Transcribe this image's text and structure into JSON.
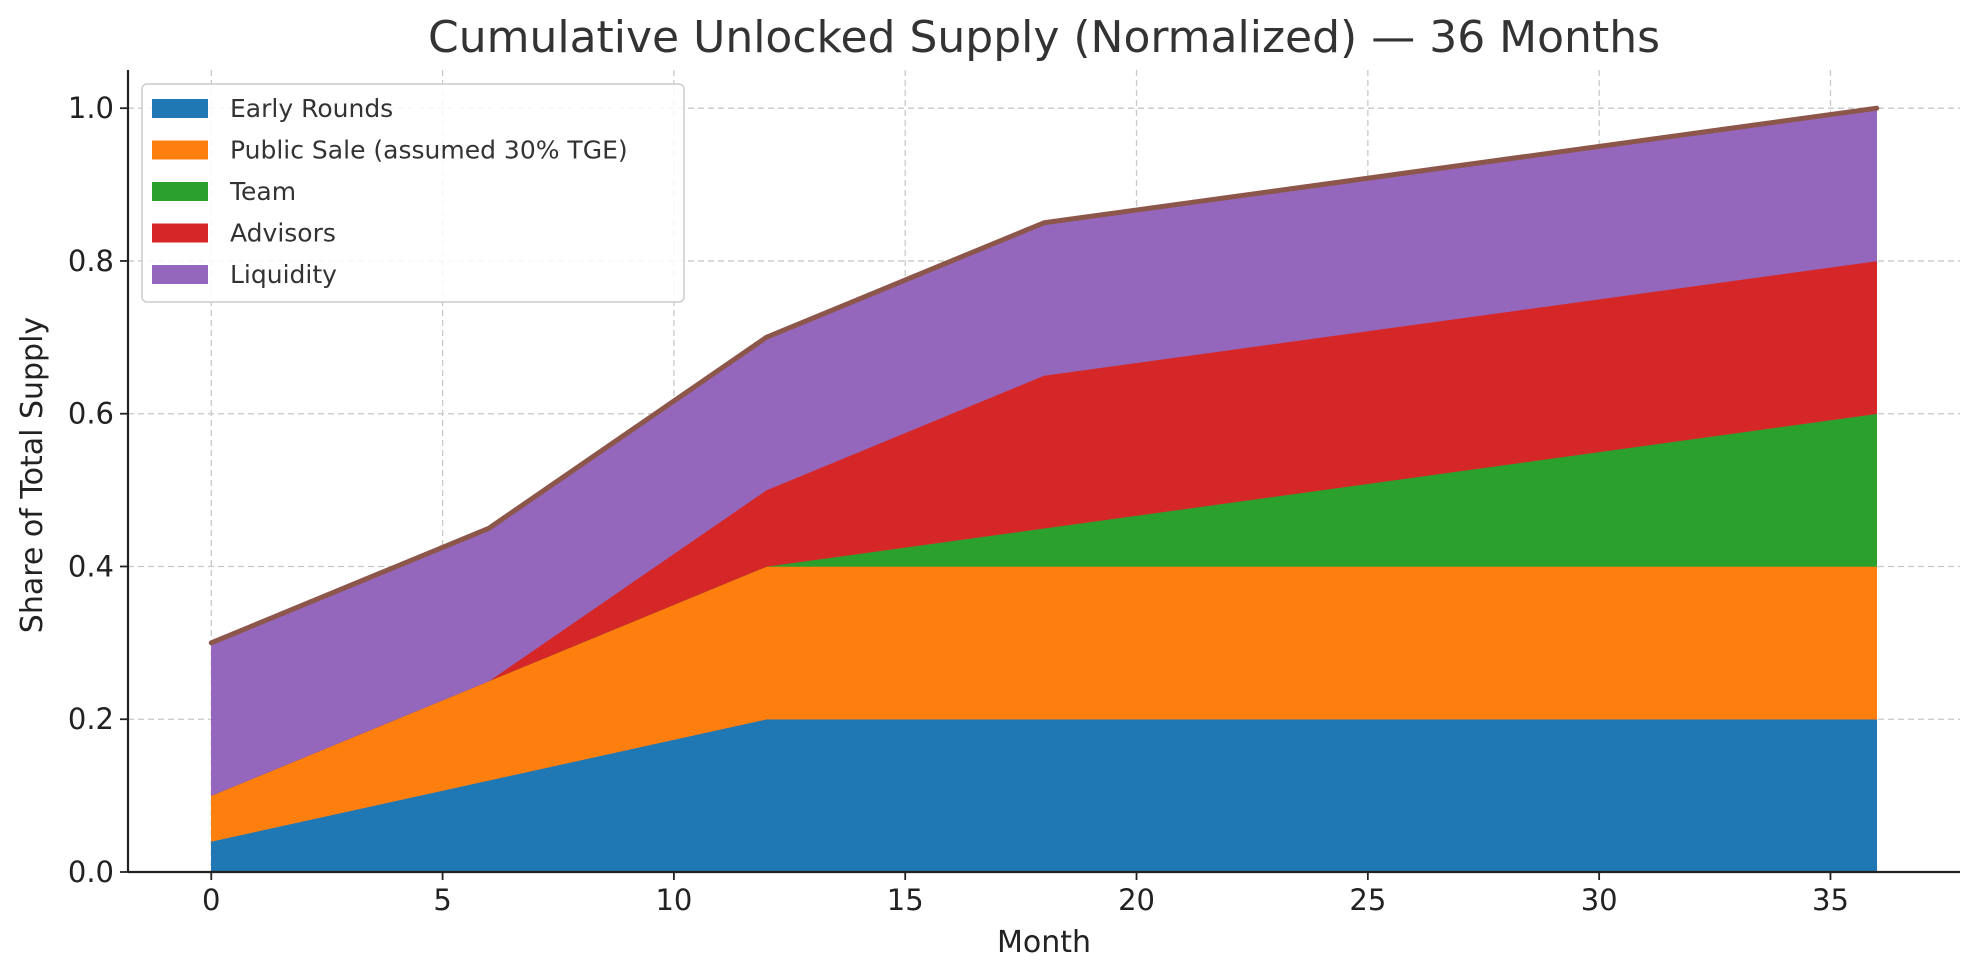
{
  "chart_data": {
    "type": "area",
    "stacked": true,
    "title": "Cumulative Unlocked Supply (Normalized) — 36 Months",
    "xlabel": "Month",
    "ylabel": "Share of Total Supply",
    "x": [
      0,
      6,
      12,
      18,
      36
    ],
    "xlim": [
      -1.8,
      37.8
    ],
    "ylim": [
      0,
      1.05
    ],
    "xticks": [
      0,
      5,
      10,
      15,
      20,
      25,
      30,
      35
    ],
    "yticks": [
      0.0,
      0.2,
      0.4,
      0.6,
      0.8,
      1.0
    ],
    "xtick_labels": [
      "0",
      "5",
      "10",
      "15",
      "20",
      "25",
      "30",
      "35"
    ],
    "ytick_labels": [
      "0.0",
      "0.2",
      "0.4",
      "0.6",
      "0.8",
      "1.0"
    ],
    "grid": true,
    "legend_position": "top-left",
    "series": [
      {
        "name": "Early Rounds",
        "color": "#1f77b4",
        "values": [
          0.04,
          0.12,
          0.2,
          0.2,
          0.2
        ]
      },
      {
        "name": "Public Sale (assumed 30% TGE)",
        "color": "#ff7f0e",
        "values": [
          0.06,
          0.13,
          0.2,
          0.2,
          0.2
        ]
      },
      {
        "name": "Team",
        "color": "#2ca02c",
        "values": [
          0.0,
          0.0,
          0.0,
          0.05,
          0.2
        ]
      },
      {
        "name": "Advisors",
        "color": "#d62728",
        "values": [
          0.0,
          0.0,
          0.1,
          0.2,
          0.2
        ]
      },
      {
        "name": "Liquidity",
        "color": "#9467bd",
        "values": [
          0.2,
          0.2,
          0.2,
          0.2,
          0.2
        ]
      }
    ],
    "total_line": {
      "color": "#8c564b",
      "values": [
        0.3,
        0.45,
        0.7,
        0.85,
        1.0
      ]
    }
  }
}
